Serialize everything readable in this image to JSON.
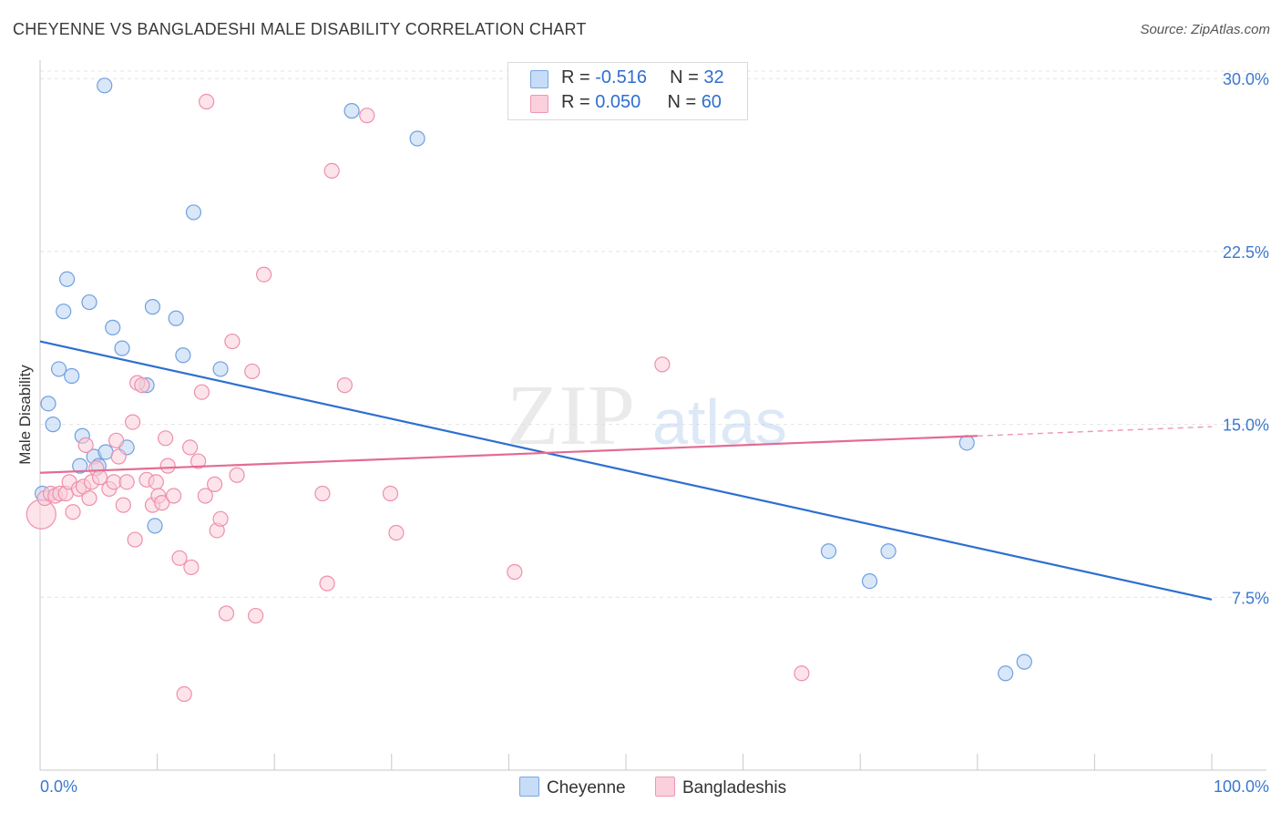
{
  "header": {
    "title": "CHEYENNE VS BANGLADESHI MALE DISABILITY CORRELATION CHART",
    "source": "Source: ZipAtlas.com"
  },
  "watermark": {
    "zip": "ZIP",
    "atlas": "atlas"
  },
  "stats": [
    {
      "r_label": "R = ",
      "r_value": "-0.516",
      "n_label": "N = ",
      "n_value": "32",
      "color": "#a8c8f0"
    },
    {
      "r_label": "R = ",
      "r_value": "0.050",
      "n_label": "N = ",
      "n_value": "60",
      "color": "#f5b8c8"
    }
  ],
  "legend": [
    {
      "label": "Cheyenne",
      "color": "#a8c8f0"
    },
    {
      "label": "Bangladeshis",
      "color": "#f5b8c8"
    }
  ],
  "chart_data": {
    "type": "scatter",
    "title": "CHEYENNE VS BANGLADESHI MALE DISABILITY CORRELATION CHART",
    "xlabel": "",
    "ylabel": "Male Disability",
    "xlim": [
      0,
      100
    ],
    "ylim": [
      0,
      30.8
    ],
    "x_tick_labels": [
      "0.0%",
      "100.0%"
    ],
    "y_ticks": [
      7.5,
      15.0,
      22.5,
      30.0
    ],
    "y_tick_labels": [
      "7.5%",
      "15.0%",
      "22.5%",
      "30.0%"
    ],
    "grid": true,
    "series": [
      {
        "name": "Cheyenne",
        "color": "#6fa0e0",
        "fill": "#b9d3f3",
        "line_color": "#2d6fd0",
        "trend": [
          [
            0,
            18.6
          ],
          [
            100,
            7.4
          ]
        ],
        "points": [
          [
            0.2,
            12.0
          ],
          [
            0.7,
            15.9
          ],
          [
            1.1,
            15.0
          ],
          [
            1.6,
            17.4
          ],
          [
            2.0,
            19.9
          ],
          [
            2.3,
            21.3
          ],
          [
            2.7,
            17.1
          ],
          [
            3.4,
            13.2
          ],
          [
            3.6,
            14.5
          ],
          [
            4.2,
            20.3
          ],
          [
            4.6,
            13.6
          ],
          [
            5.0,
            13.2
          ],
          [
            5.6,
            13.8
          ],
          [
            5.5,
            29.7
          ],
          [
            6.2,
            19.2
          ],
          [
            7.0,
            18.3
          ],
          [
            7.4,
            14.0
          ],
          [
            9.1,
            16.7
          ],
          [
            9.6,
            20.1
          ],
          [
            9.8,
            10.6
          ],
          [
            11.6,
            19.6
          ],
          [
            12.2,
            18.0
          ],
          [
            13.1,
            24.2
          ],
          [
            15.4,
            17.4
          ],
          [
            26.6,
            28.6
          ],
          [
            32.2,
            27.4
          ],
          [
            67.3,
            9.5
          ],
          [
            70.8,
            8.2
          ],
          [
            72.4,
            9.5
          ],
          [
            79.1,
            14.2
          ],
          [
            82.4,
            4.2
          ],
          [
            84.0,
            4.7
          ]
        ]
      },
      {
        "name": "Bangladeshis",
        "color": "#ee8fab",
        "fill": "#f9cdd9",
        "line_color": "#e46b93",
        "trend": [
          [
            0,
            12.9
          ],
          [
            80,
            14.5
          ]
        ],
        "trend_dashed": [
          [
            80,
            14.5
          ],
          [
            100,
            14.9
          ]
        ],
        "points": [
          [
            0.1,
            11.1
          ],
          [
            0.4,
            11.8
          ],
          [
            0.9,
            12.0
          ],
          [
            1.3,
            11.9
          ],
          [
            1.7,
            12.0
          ],
          [
            2.2,
            12.0
          ],
          [
            2.5,
            12.5
          ],
          [
            2.8,
            11.2
          ],
          [
            3.3,
            12.2
          ],
          [
            3.7,
            12.3
          ],
          [
            3.9,
            14.1
          ],
          [
            4.2,
            11.8
          ],
          [
            4.4,
            12.5
          ],
          [
            4.8,
            13.1
          ],
          [
            5.1,
            12.7
          ],
          [
            5.9,
            12.2
          ],
          [
            6.3,
            12.5
          ],
          [
            6.5,
            14.3
          ],
          [
            6.7,
            13.6
          ],
          [
            7.1,
            11.5
          ],
          [
            7.4,
            12.5
          ],
          [
            7.9,
            15.1
          ],
          [
            8.1,
            10.0
          ],
          [
            8.3,
            16.8
          ],
          [
            8.7,
            16.7
          ],
          [
            9.1,
            12.6
          ],
          [
            9.6,
            11.5
          ],
          [
            9.9,
            12.5
          ],
          [
            10.1,
            11.9
          ],
          [
            10.4,
            11.6
          ],
          [
            10.7,
            14.4
          ],
          [
            10.9,
            13.2
          ],
          [
            11.4,
            11.9
          ],
          [
            11.9,
            9.2
          ],
          [
            12.3,
            3.3
          ],
          [
            12.8,
            14.0
          ],
          [
            12.9,
            8.8
          ],
          [
            13.5,
            13.4
          ],
          [
            13.8,
            16.4
          ],
          [
            14.1,
            11.9
          ],
          [
            14.2,
            29.0
          ],
          [
            14.9,
            12.4
          ],
          [
            15.1,
            10.4
          ],
          [
            15.4,
            10.9
          ],
          [
            15.9,
            6.8
          ],
          [
            16.4,
            18.6
          ],
          [
            16.8,
            12.8
          ],
          [
            18.1,
            17.3
          ],
          [
            18.4,
            6.7
          ],
          [
            19.1,
            21.5
          ],
          [
            24.1,
            12.0
          ],
          [
            24.5,
            8.1
          ],
          [
            24.9,
            26.0
          ],
          [
            26.0,
            16.7
          ],
          [
            27.9,
            28.4
          ],
          [
            29.9,
            12.0
          ],
          [
            30.4,
            10.3
          ],
          [
            40.5,
            8.6
          ],
          [
            53.1,
            17.6
          ],
          [
            65.0,
            4.2
          ]
        ]
      }
    ]
  }
}
